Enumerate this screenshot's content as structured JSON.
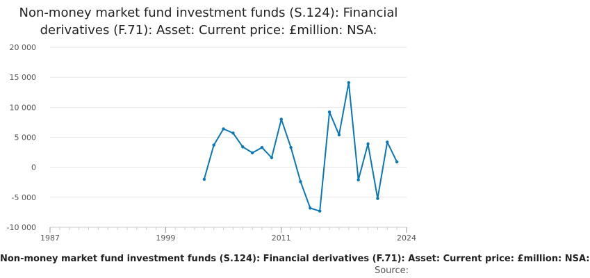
{
  "title": "Non-money market fund investment funds (S.124): Financial derivatives (F.71): Asset: Current price: £million: NSA:",
  "footer_label": "Non-money market fund investment funds (S.124): Financial derivatives (F.71): Asset: Current price: £million: NSA:",
  "source_label": "Source:",
  "colors": {
    "line": "#0a77b5",
    "grid": "#e6e6e6",
    "axis": "#cccccc"
  },
  "chart_data": {
    "type": "line",
    "title": "Non-money market fund investment funds (S.124): Financial derivatives (F.71): Asset: Current price: £million: NSA:",
    "xlabel": "Non-money market fund investment funds (S.124): Financial derivatives (F.71): Asset: Current price: £million: NSA:",
    "ylabel": "",
    "xlim": [
      1987,
      2024
    ],
    "ylim": [
      -10000,
      20000
    ],
    "x_ticks": [
      1987,
      1999,
      2011,
      2024
    ],
    "x_tick_labels": [
      "1987",
      "1999",
      "2011",
      "2024"
    ],
    "y_ticks": [
      -10000,
      -5000,
      0,
      5000,
      10000,
      15000,
      20000
    ],
    "y_tick_labels": [
      "-10 000",
      "-5 000",
      "0",
      "5 000",
      "10 000",
      "15 000",
      "20 000"
    ],
    "grid": true,
    "series": [
      {
        "x": [
          2003,
          2004,
          2005,
          2006,
          2007,
          2008,
          2009,
          2010,
          2011,
          2012,
          2013,
          2014,
          2015,
          2016,
          2017,
          2018,
          2019,
          2020,
          2021,
          2022,
          2023,
          2024
        ],
        "values": [
          -2000,
          3700,
          6400,
          5700,
          3400,
          2400,
          3300,
          1600,
          8000,
          3300,
          -2400,
          -6800,
          -7300,
          9200,
          5400,
          14100,
          -2100,
          3900,
          -5200,
          4200,
          900,
          null
        ]
      }
    ]
  }
}
